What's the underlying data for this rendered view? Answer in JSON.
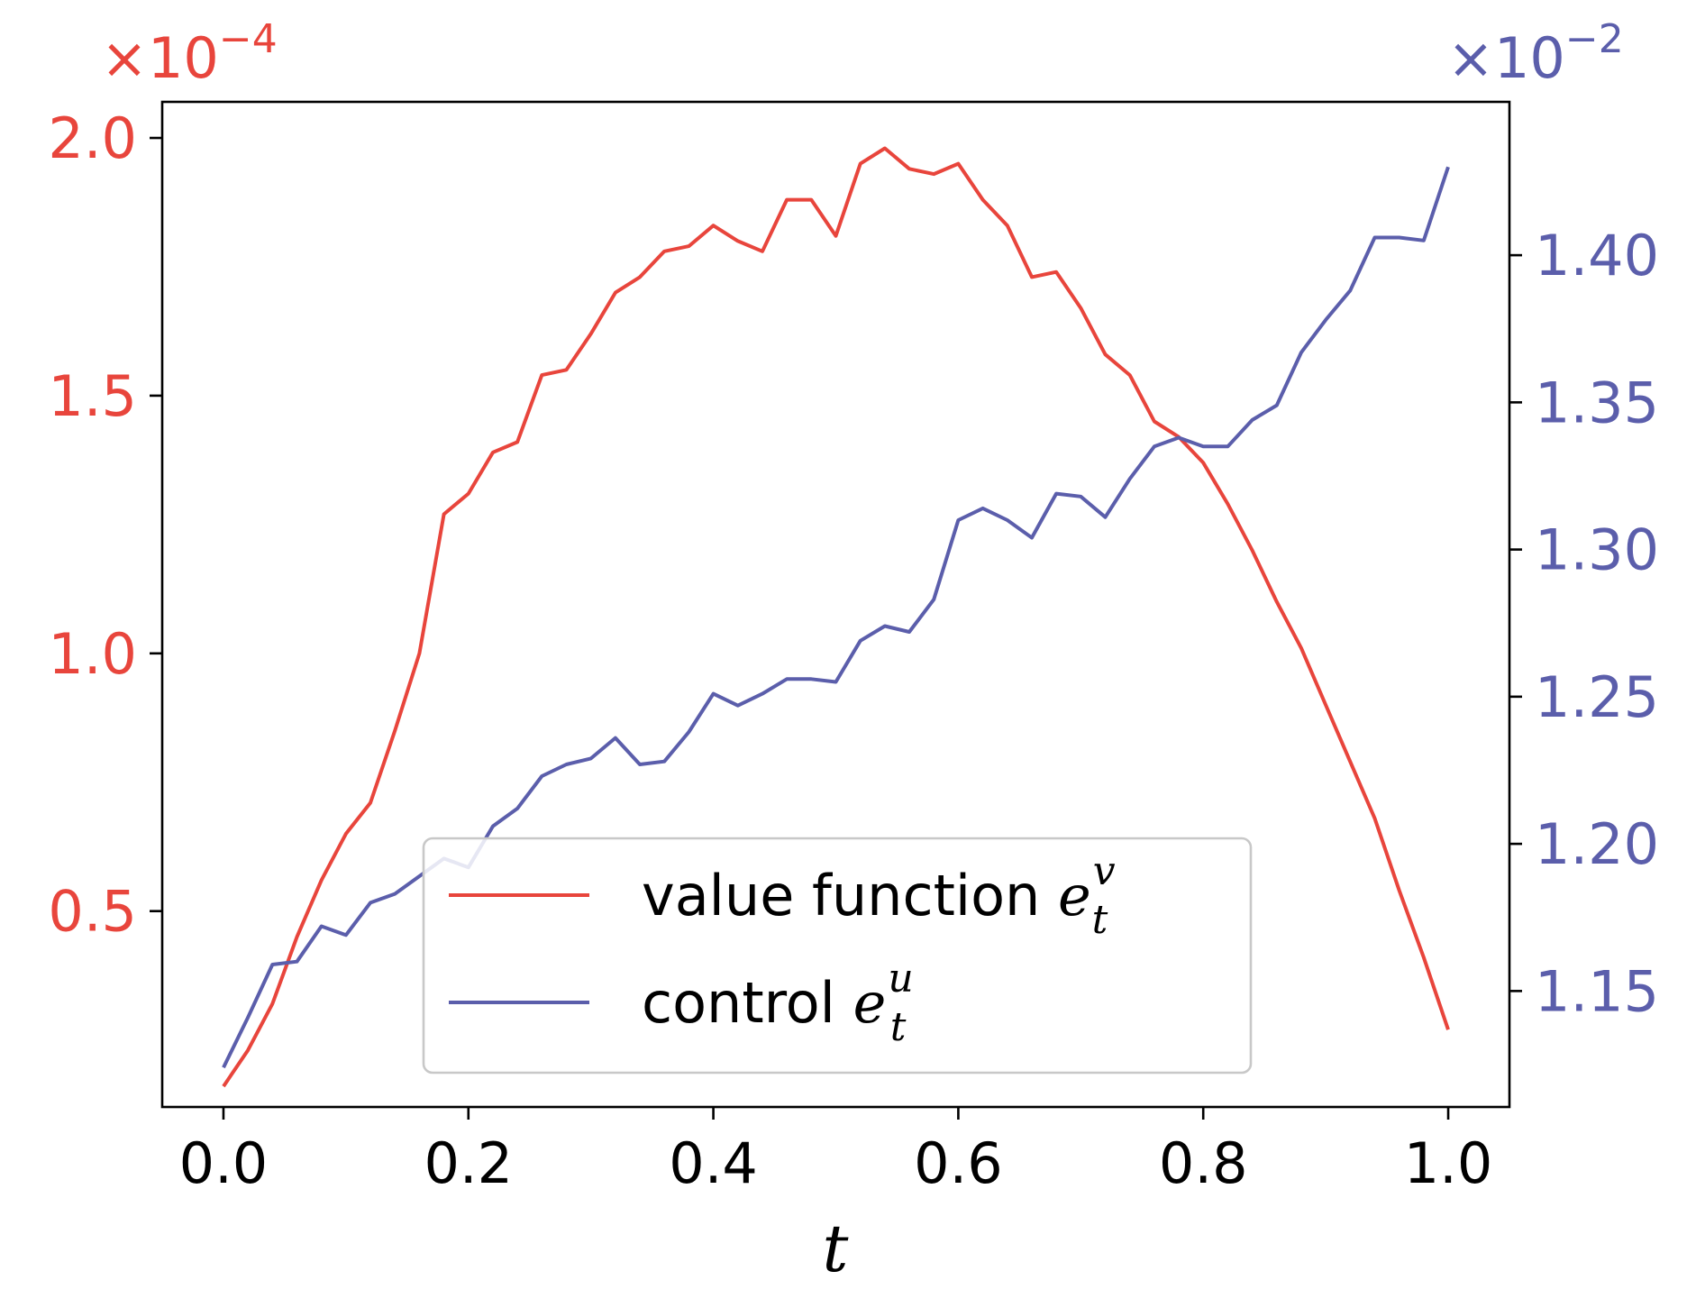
{
  "chart_data": {
    "type": "line",
    "xlabel": "t",
    "xlim": [
      -0.05,
      1.05
    ],
    "x_ticks": [
      "0.0",
      "0.2",
      "0.4",
      "0.6",
      "0.8",
      "1.0"
    ],
    "x_tick_values": [
      0.0,
      0.2,
      0.4,
      0.6,
      0.8,
      1.0
    ],
    "left_axis": {
      "scale_label": "×10",
      "scale_exponent": "−4",
      "color": "#e8453c",
      "ylim": [
        0.12,
        2.07
      ],
      "ticks": [
        "0.5",
        "1.0",
        "1.5",
        "2.0"
      ],
      "tick_values": [
        0.5,
        1.0,
        1.5,
        2.0
      ]
    },
    "right_axis": {
      "scale_label": "×10",
      "scale_exponent": "−2",
      "color": "#5b5eab",
      "ylim": [
        1.1106,
        1.4521
      ],
      "ticks": [
        "1.15",
        "1.20",
        "1.25",
        "1.30",
        "1.35",
        "1.40"
      ],
      "tick_values": [
        1.15,
        1.2,
        1.25,
        1.3,
        1.35,
        1.4
      ]
    },
    "series": [
      {
        "name": "value function",
        "legend_math": "e",
        "legend_sub": "t",
        "legend_sup": "v",
        "axis": "left",
        "color": "#e8453c",
        "x": [
          0.0,
          0.02,
          0.04,
          0.06,
          0.08,
          0.1,
          0.12,
          0.14,
          0.16,
          0.18,
          0.2,
          0.22,
          0.24,
          0.26,
          0.28,
          0.3,
          0.32,
          0.34,
          0.36,
          0.38,
          0.4,
          0.42,
          0.44,
          0.46,
          0.48,
          0.5,
          0.52,
          0.54,
          0.56,
          0.58,
          0.6,
          0.62,
          0.64,
          0.66,
          0.68,
          0.7,
          0.72,
          0.74,
          0.76,
          0.78,
          0.8,
          0.82,
          0.84,
          0.86,
          0.88,
          0.9,
          0.92,
          0.94,
          0.96,
          0.98,
          1.0
        ],
        "values": [
          0.16,
          0.23,
          0.32,
          0.45,
          0.56,
          0.65,
          0.71,
          0.85,
          1.0,
          1.27,
          1.31,
          1.39,
          1.41,
          1.54,
          1.55,
          1.62,
          1.7,
          1.73,
          1.78,
          1.79,
          1.83,
          1.8,
          1.78,
          1.88,
          1.88,
          1.81,
          1.95,
          1.98,
          1.94,
          1.93,
          1.95,
          1.88,
          1.83,
          1.73,
          1.74,
          1.67,
          1.58,
          1.54,
          1.45,
          1.42,
          1.37,
          1.29,
          1.2,
          1.1,
          1.01,
          0.9,
          0.79,
          0.68,
          0.54,
          0.41,
          0.27
        ]
      },
      {
        "name": "control",
        "legend_math": "e",
        "legend_sub": "t",
        "legend_sup": "u",
        "axis": "right",
        "color": "#5b5eab",
        "x": [
          0.0,
          0.02,
          0.04,
          0.06,
          0.08,
          0.1,
          0.12,
          0.14,
          0.16,
          0.18,
          0.2,
          0.22,
          0.24,
          0.26,
          0.28,
          0.3,
          0.32,
          0.34,
          0.36,
          0.38,
          0.4,
          0.42,
          0.44,
          0.46,
          0.48,
          0.5,
          0.52,
          0.54,
          0.56,
          0.58,
          0.6,
          0.62,
          0.64,
          0.66,
          0.68,
          0.7,
          0.72,
          0.74,
          0.76,
          0.78,
          0.8,
          0.82,
          0.84,
          0.86,
          0.88,
          0.9,
          0.92,
          0.94,
          0.96,
          0.98,
          1.0
        ],
        "values": [
          1.124,
          1.141,
          1.159,
          1.16,
          1.172,
          1.169,
          1.18,
          1.183,
          1.189,
          1.195,
          1.192,
          1.206,
          1.212,
          1.223,
          1.227,
          1.229,
          1.236,
          1.227,
          1.228,
          1.238,
          1.251,
          1.247,
          1.251,
          1.256,
          1.256,
          1.255,
          1.269,
          1.274,
          1.272,
          1.283,
          1.31,
          1.314,
          1.31,
          1.304,
          1.319,
          1.318,
          1.311,
          1.324,
          1.335,
          1.338,
          1.335,
          1.335,
          1.344,
          1.349,
          1.367,
          1.378,
          1.388,
          1.406,
          1.406,
          1.405,
          1.43
        ]
      }
    ],
    "legend_position": "lower center"
  }
}
